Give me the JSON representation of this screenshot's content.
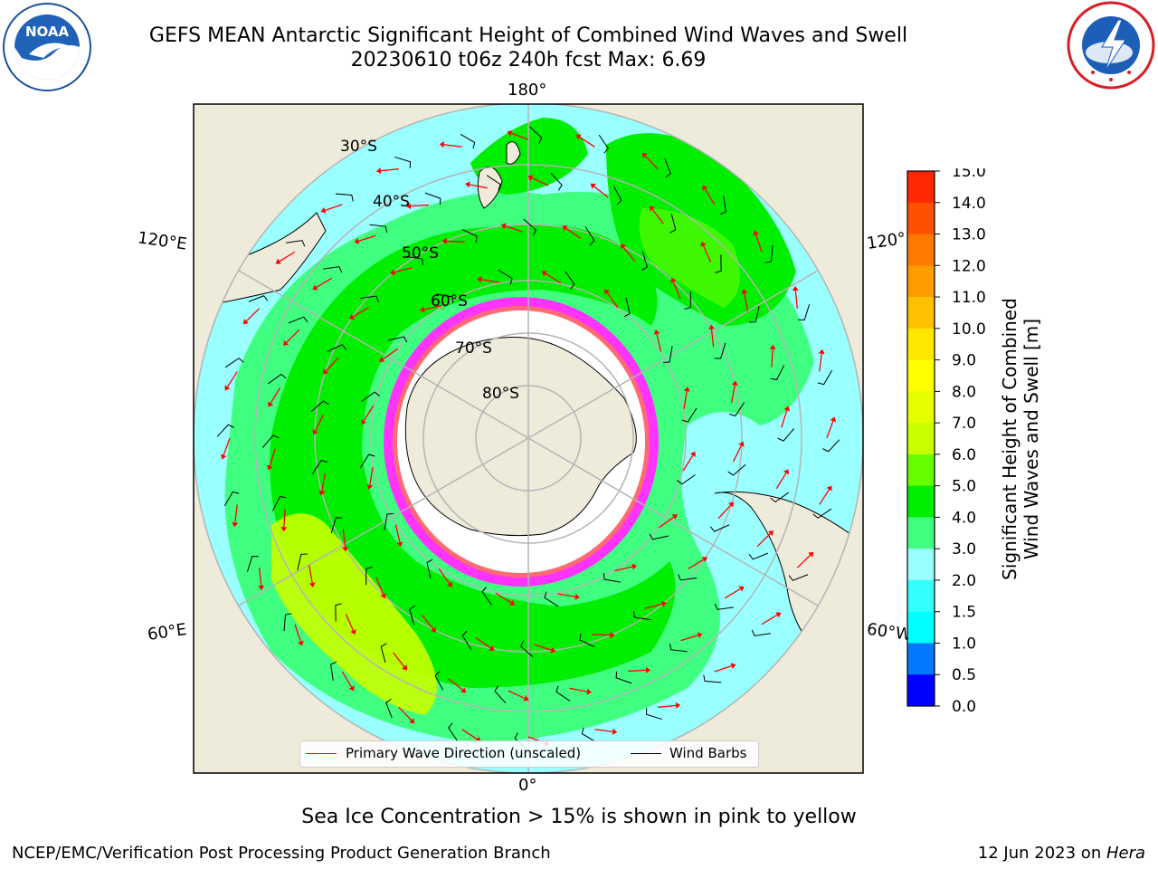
{
  "header": {
    "title_line1": "GEFS MEAN Antarctic Significant Height of Combined Wind Waves and Swell",
    "title_line2": "20230610 t06z 240h fcst   Max: 6.69"
  },
  "logos": {
    "left": {
      "text": "NOAA",
      "icon": "noaa-logo"
    },
    "right": {
      "text": "NATIONAL WEATHER SERVICE",
      "icon": "nws-logo"
    }
  },
  "map": {
    "projection": "south-polar-stereographic",
    "longitude_labels": {
      "top": "180°",
      "bottom": "0°",
      "upper_left": "120°E",
      "lower_left": "60°E",
      "upper_right": "120°",
      "lower_right": "60°W"
    },
    "latitude_labels": [
      "30°S",
      "40°S",
      "50°S",
      "60°S",
      "70°S",
      "80°S"
    ],
    "colors": {
      "ocean_bg": "#99ffff",
      "land": "#efebdb",
      "ice_shelf": "#ffffff",
      "sea_ice": "#ff33ff",
      "wave_arrow": "#ff0000",
      "wind_barb": "#000000",
      "grid": "#b4b4b4"
    }
  },
  "legend": {
    "primary_wave": "Primary Wave Direction (unscaled)",
    "wind_barbs": "Wind Barbs"
  },
  "colorbar": {
    "label_line1": "Significant Height of Combined",
    "label_line2": "Wind Waves and Swell [m]",
    "ticks": [
      "15.0",
      "14.0",
      "13.0",
      "12.0",
      "11.0",
      "10.0",
      "9.0",
      "8.0",
      "7.0",
      "6.0",
      "5.0",
      "4.0",
      "3.0",
      "2.0",
      "1.5",
      "1.0",
      "0.5",
      "0.0"
    ],
    "colors_top_to_bottom": [
      "#ff0000",
      "#ff2800",
      "#ff5000",
      "#ff7800",
      "#ff9c00",
      "#ffc000",
      "#ffe800",
      "#ffff00",
      "#e6ff00",
      "#c8ff00",
      "#66ff00",
      "#00ee00",
      "#40ff80",
      "#99ffff",
      "#33ffff",
      "#00ffff",
      "#0078ff",
      "#0000ff"
    ]
  },
  "notes": {
    "sea_ice": "Sea Ice Concentration > 15% is shown in pink to yellow"
  },
  "footer": {
    "left": "NCEP/EMC/Verification Post Processing Product Generation Branch",
    "date": "12 Jun 2023 on ",
    "host": "Hera"
  }
}
